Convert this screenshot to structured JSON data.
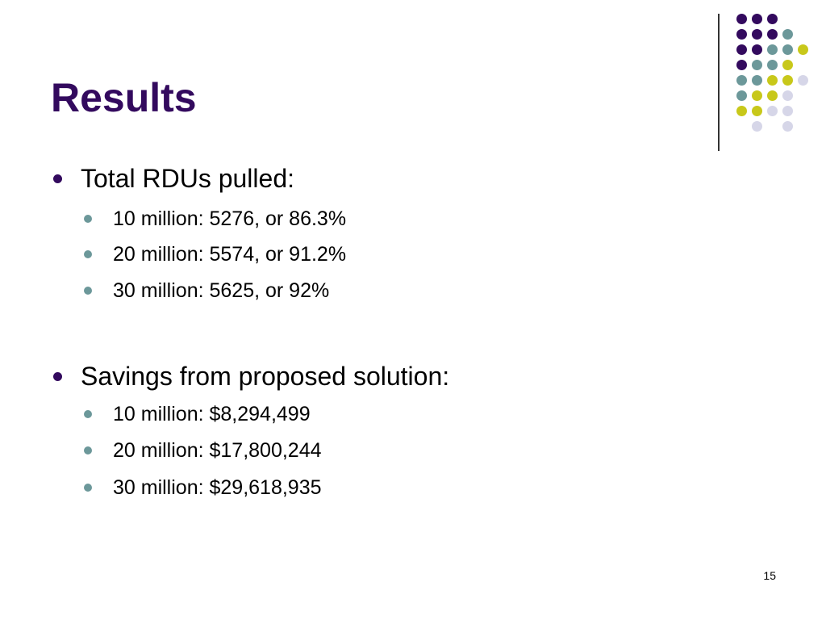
{
  "slide": {
    "title": "Results",
    "page_number": "15",
    "colors": {
      "title": "#330a5e",
      "bullet_level1": "#330a5e",
      "bullet_level2": "#6c989a",
      "dot_purple": "#330a5e",
      "dot_teal": "#6c989a",
      "dot_yellow": "#c8c81a",
      "dot_lavender": "#d6d6e8"
    },
    "sections": [
      {
        "heading": "Total RDUs pulled:",
        "items": [
          "10 million: 5276, or 86.3%",
          "20 million: 5574, or 91.2%",
          "30 million: 5625, or 92%"
        ]
      },
      {
        "heading": "Savings from proposed solution:",
        "items": [
          "10 million: $8,294,499",
          "20 million: $17,800,244",
          "30 million: $29,618,935"
        ]
      }
    ]
  }
}
